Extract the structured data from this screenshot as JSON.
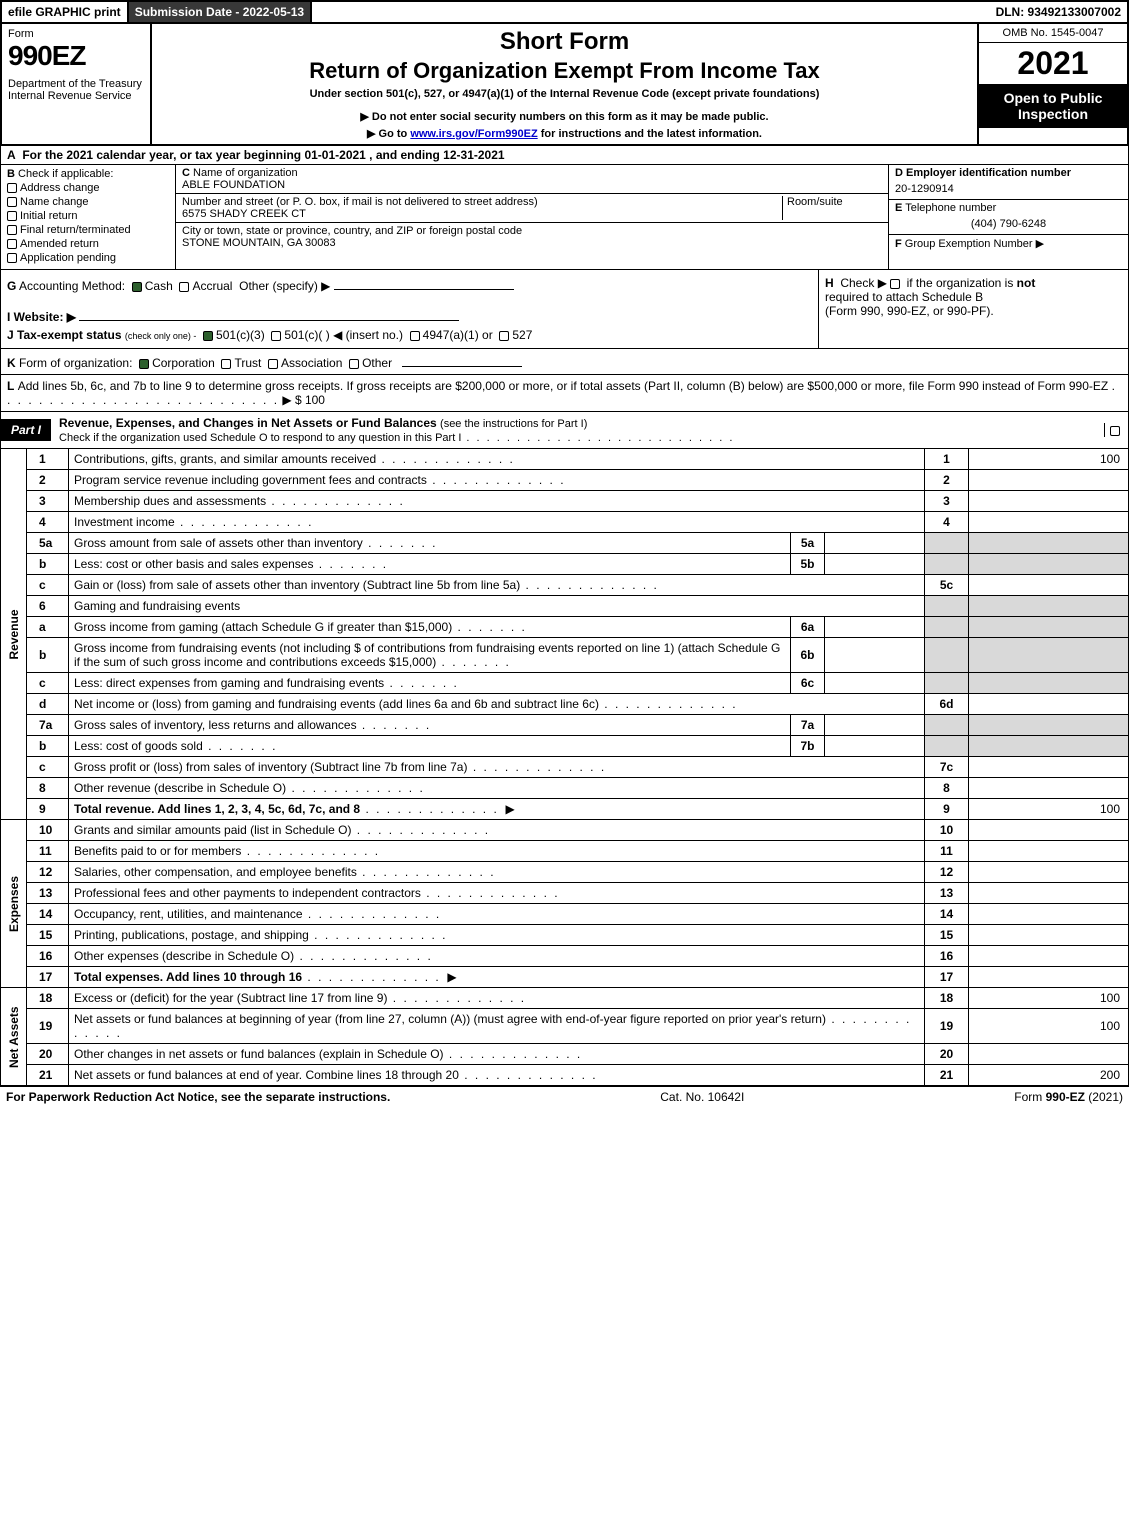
{
  "top_bar": {
    "efile": "efile GRAPHIC print",
    "sub_date": "Submission Date - 2022-05-13",
    "dln": "DLN: 93492133007002"
  },
  "header": {
    "form_word": "Form",
    "form_num": "990EZ",
    "dept": "Department of the Treasury\nInternal Revenue Service",
    "title1": "Short Form",
    "title2": "Return of Organization Exempt From Income Tax",
    "sub1": "Under section 501(c), 527, or 4947(a)(1) of the Internal Revenue Code (except private foundations)",
    "sub2": "▶ Do not enter social security numbers on this form as it may be made public.",
    "sub3_pre": "▶ Go to ",
    "sub3_link": "www.irs.gov/Form990EZ",
    "sub3_post": " for instructions and the latest information.",
    "omb": "OMB No. 1545-0047",
    "year": "2021",
    "open_pub": "Open to Public Inspection"
  },
  "line_a": {
    "label": "A",
    "text": "For the 2021 calendar year, or tax year beginning 01-01-2021 , and ending 12-31-2021"
  },
  "section_b": {
    "label": "B",
    "check_text": "Check if applicable:",
    "opts": [
      "Address change",
      "Name change",
      "Initial return",
      "Final return/terminated",
      "Amended return",
      "Application pending"
    ],
    "c_label": "C",
    "c_name_lbl": "Name of organization",
    "c_name": "ABLE FOUNDATION",
    "addr_lbl": "Number and street (or P. O. box, if mail is not delivered to street address)",
    "room_lbl": "Room/suite",
    "addr": "6575 SHADY CREEK CT",
    "city_lbl": "City or town, state or province, country, and ZIP or foreign postal code",
    "city": "STONE MOUNTAIN, GA  30083",
    "d_label": "D Employer identification number",
    "d_val": "20-1290914",
    "e_label": "E",
    "e_txt": "Telephone number",
    "e_val": "(404) 790-6248",
    "f_label": "F",
    "f_txt": "Group Exemption Number   ▶"
  },
  "row_gh": {
    "g_label": "G",
    "g_text": "Accounting Method:",
    "g_cash": "Cash",
    "g_accr": "Accrual",
    "g_other": "Other (specify) ▶",
    "i_label": "I Website: ▶",
    "j_label": "J Tax-exempt status",
    "j_note": "(check only one) -",
    "j_501c3": "501(c)(3)",
    "j_501c": "501(c)(  ) ◀ (insert no.)",
    "j_4947": "4947(a)(1) or",
    "j_527": "527",
    "h_label": "H",
    "h_text_pre": "Check ▶ ",
    "h_text_post": " if the organization is ",
    "h_not": "not",
    "h_text2": "required to attach Schedule B",
    "h_text3": "(Form 990, 990-EZ, or 990-PF)."
  },
  "line_k": {
    "label": "K",
    "text": "Form of organization:",
    "opts": [
      "Corporation",
      "Trust",
      "Association",
      "Other"
    ]
  },
  "line_l": {
    "label": "L",
    "text": "Add lines 5b, 6c, and 7b to line 9 to determine gross receipts. If gross receipts are $200,000 or more, or if total assets (Part II, column (B) below) are $500,000 or more, file Form 990 instead of Form 990-EZ",
    "val": "▶ $ 100"
  },
  "part1": {
    "tag": "Part I",
    "desc": "Revenue, Expenses, and Changes in Net Assets or Fund Balances",
    "desc_note": "(see the instructions for Part I)",
    "sub": "Check if the organization used Schedule O to respond to any question in this Part I"
  },
  "side_labels": {
    "revenue": "Revenue",
    "expenses": "Expenses",
    "net": "Net Assets"
  },
  "lines": [
    {
      "n": "1",
      "d": "Contributions, gifts, grants, and similar amounts received",
      "num": "1",
      "val": "100"
    },
    {
      "n": "2",
      "d": "Program service revenue including government fees and contracts",
      "num": "2",
      "val": ""
    },
    {
      "n": "3",
      "d": "Membership dues and assessments",
      "num": "3",
      "val": ""
    },
    {
      "n": "4",
      "d": "Investment income",
      "num": "4",
      "val": ""
    },
    {
      "n": "5a",
      "d": "Gross amount from sale of assets other than inventory",
      "sub": "5a",
      "subval": "",
      "grey": true
    },
    {
      "n": "b",
      "d": "Less: cost or other basis and sales expenses",
      "sub": "5b",
      "subval": "",
      "grey": true
    },
    {
      "n": "c",
      "d": "Gain or (loss) from sale of assets other than inventory (Subtract line 5b from line 5a)",
      "num": "5c",
      "val": ""
    },
    {
      "n": "6",
      "d": "Gaming and fundraising events",
      "grey": true,
      "noval": true
    },
    {
      "n": "a",
      "d": "Gross income from gaming (attach Schedule G if greater than $15,000)",
      "sub": "6a",
      "subval": "",
      "grey": true
    },
    {
      "n": "b",
      "d": "Gross income from fundraising events (not including $                          of contributions from fundraising events reported on line 1) (attach Schedule G if the sum of such gross income and contributions exceeds $15,000)",
      "sub": "6b",
      "subval": "",
      "grey": true,
      "tall": true
    },
    {
      "n": "c",
      "d": "Less: direct expenses from gaming and fundraising events",
      "sub": "6c",
      "subval": "",
      "grey": true
    },
    {
      "n": "d",
      "d": "Net income or (loss) from gaming and fundraising events (add lines 6a and 6b and subtract line 6c)",
      "num": "6d",
      "val": ""
    },
    {
      "n": "7a",
      "d": "Gross sales of inventory, less returns and allowances",
      "sub": "7a",
      "subval": "",
      "grey": true
    },
    {
      "n": "b",
      "d": "Less: cost of goods sold",
      "sub": "7b",
      "subval": "",
      "grey": true
    },
    {
      "n": "c",
      "d": "Gross profit or (loss) from sales of inventory (Subtract line 7b from line 7a)",
      "num": "7c",
      "val": ""
    },
    {
      "n": "8",
      "d": "Other revenue (describe in Schedule O)",
      "num": "8",
      "val": ""
    },
    {
      "n": "9",
      "d": "Total revenue. Add lines 1, 2, 3, 4, 5c, 6d, 7c, and 8",
      "num": "9",
      "val": "100",
      "bold": true,
      "arrow": true
    }
  ],
  "exp_lines": [
    {
      "n": "10",
      "d": "Grants and similar amounts paid (list in Schedule O)",
      "num": "10",
      "val": ""
    },
    {
      "n": "11",
      "d": "Benefits paid to or for members",
      "num": "11",
      "val": ""
    },
    {
      "n": "12",
      "d": "Salaries, other compensation, and employee benefits",
      "num": "12",
      "val": ""
    },
    {
      "n": "13",
      "d": "Professional fees and other payments to independent contractors",
      "num": "13",
      "val": ""
    },
    {
      "n": "14",
      "d": "Occupancy, rent, utilities, and maintenance",
      "num": "14",
      "val": ""
    },
    {
      "n": "15",
      "d": "Printing, publications, postage, and shipping",
      "num": "15",
      "val": ""
    },
    {
      "n": "16",
      "d": "Other expenses (describe in Schedule O)",
      "num": "16",
      "val": ""
    },
    {
      "n": "17",
      "d": "Total expenses. Add lines 10 through 16",
      "num": "17",
      "val": "",
      "bold": true,
      "arrow": true
    }
  ],
  "net_lines": [
    {
      "n": "18",
      "d": "Excess or (deficit) for the year (Subtract line 17 from line 9)",
      "num": "18",
      "val": "100"
    },
    {
      "n": "19",
      "d": "Net assets or fund balances at beginning of year (from line 27, column (A)) (must agree with end-of-year figure reported on prior year's return)",
      "num": "19",
      "val": "100",
      "tall": true
    },
    {
      "n": "20",
      "d": "Other changes in net assets or fund balances (explain in Schedule O)",
      "num": "20",
      "val": ""
    },
    {
      "n": "21",
      "d": "Net assets or fund balances at end of year. Combine lines 18 through 20",
      "num": "21",
      "val": "200"
    }
  ],
  "footer": {
    "left": "For Paperwork Reduction Act Notice, see the separate instructions.",
    "mid": "Cat. No. 10642I",
    "right_pre": "Form ",
    "right_b": "990-EZ",
    "right_post": " (2021)"
  }
}
